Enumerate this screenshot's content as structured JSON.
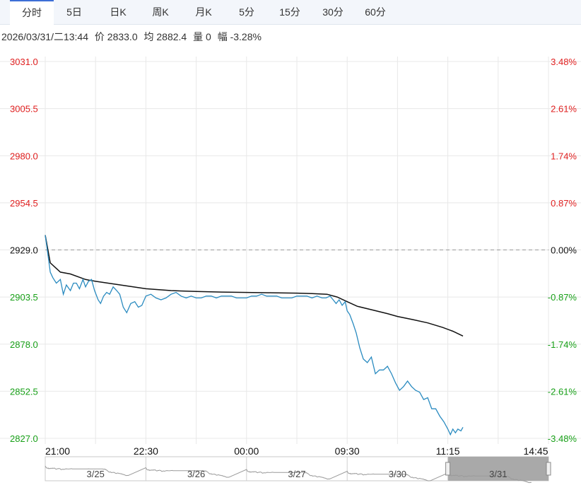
{
  "tabs": [
    "分时",
    "5日",
    "日K",
    "周K",
    "月K",
    "5分",
    "15分",
    "30分",
    "60分"
  ],
  "active_tab": 0,
  "info": {
    "datetime": "2026/03/31/二13:44",
    "price": "价 2833.0",
    "avg": "均 2882.4",
    "volume": "量 0",
    "change": "幅 -3.28%"
  },
  "colors": {
    "price_line": "#2a8bc0",
    "avg_line": "#111111",
    "up": "#e02020",
    "down": "#18a018",
    "flat": "#111111",
    "grid": "#e8e8e8",
    "accent": "#3d6fd6"
  },
  "chart_data": {
    "type": "line",
    "prev_close": 2929.0,
    "ylim": [
      2827.0,
      3031.0
    ],
    "y_ticks": [
      "3031.0",
      "3005.5",
      "2980.0",
      "2954.5",
      "2929.0",
      "2903.5",
      "2878.0",
      "2852.5",
      "2827.0"
    ],
    "pct_ticks": [
      "3.48%",
      "2.61%",
      "1.74%",
      "0.87%",
      "0.00%",
      "-0.87%",
      "-1.74%",
      "-2.61%",
      "-3.48%"
    ],
    "x_ticks": [
      "21:00",
      "22:30",
      "00:00",
      "09:30",
      "11:15",
      "14:45"
    ],
    "x_domain": [
      0,
      10
    ],
    "x_tick_positions": [
      0,
      2,
      4,
      6,
      8,
      10
    ],
    "series": [
      {
        "x": [
          0,
          0.05,
          0.1,
          0.15,
          0.22,
          0.3,
          0.36,
          0.42,
          0.5,
          0.56,
          0.62,
          0.68,
          0.75,
          0.8,
          0.86,
          0.92,
          0.98,
          1.05,
          1.1,
          1.16,
          1.22,
          1.28,
          1.35,
          1.42,
          1.48,
          1.55,
          1.62,
          1.7,
          1.78,
          1.85,
          1.92,
          2.0,
          2.1,
          2.2,
          2.3,
          2.4,
          2.5,
          2.6,
          2.7,
          2.8,
          2.9,
          3.0,
          3.1,
          3.2,
          3.3,
          3.4,
          3.5,
          3.6,
          3.7,
          3.8,
          3.9,
          4.0,
          4.1,
          4.2,
          4.3,
          4.4,
          4.5,
          4.6,
          4.7,
          4.8,
          4.9,
          5.0,
          5.1,
          5.2,
          5.3,
          5.4,
          5.5,
          5.58,
          5.66,
          5.72,
          5.78,
          5.84,
          5.9,
          5.96,
          6.0,
          6.05,
          6.12,
          6.18,
          6.25,
          6.32,
          6.4,
          6.48,
          6.56,
          6.64,
          6.72,
          6.8,
          6.88,
          6.96,
          7.04,
          7.12,
          7.2,
          7.28,
          7.36,
          7.44,
          7.52,
          7.6,
          7.68,
          7.76,
          7.84,
          7.92,
          8.0,
          8.05,
          8.1,
          8.15,
          8.2,
          8.26,
          8.3
        ],
        "values": [
          2937,
          2927,
          2917,
          2914,
          2911,
          2913,
          2905,
          2910,
          2907,
          2911,
          2911,
          2908,
          2913,
          2909,
          2912,
          2913,
          2907,
          2902,
          2900,
          2904,
          2906,
          2905,
          2909,
          2907,
          2905,
          2898,
          2895,
          2900,
          2901,
          2898,
          2899,
          2904,
          2905,
          2903,
          2902,
          2903,
          2905,
          2906,
          2904,
          2903,
          2904,
          2903,
          2903,
          2904,
          2904,
          2903,
          2904,
          2904,
          2904,
          2903,
          2903,
          2903,
          2904,
          2904,
          2905,
          2904,
          2904,
          2904,
          2903,
          2903,
          2903,
          2904,
          2904,
          2904,
          2903,
          2904,
          2903,
          2903,
          2904,
          2902,
          2900,
          2902,
          2899,
          2901,
          2896,
          2894,
          2889,
          2884,
          2876,
          2870,
          2868,
          2871,
          2862,
          2864,
          2864,
          2866,
          2862,
          2857,
          2853,
          2855,
          2858,
          2855,
          2853,
          2852,
          2848,
          2849,
          2843,
          2843,
          2839,
          2836,
          2832,
          2829,
          2832,
          2830,
          2832,
          2831,
          2833
        ]
      },
      {
        "x": [
          0,
          0.1,
          0.3,
          0.5,
          0.8,
          1.0,
          1.5,
          2.0,
          2.5,
          3.0,
          3.5,
          4.0,
          4.5,
          5.0,
          5.3,
          5.6,
          5.8,
          6.0,
          6.2,
          6.5,
          6.8,
          7.0,
          7.3,
          7.6,
          7.9,
          8.1,
          8.3
        ],
        "values": [
          2937,
          2922,
          2917,
          2916,
          2913,
          2912,
          2910,
          2908,
          2907,
          2906.5,
          2906.2,
          2906,
          2905.8,
          2905.6,
          2905.4,
          2905,
          2903.5,
          2901,
          2898.5,
          2896.5,
          2894.5,
          2893,
          2891.3,
          2889.5,
          2887,
          2885,
          2882.4
        ]
      }
    ]
  },
  "navigator": {
    "labels": [
      "3/25",
      "3/26",
      "3/27",
      "3/30",
      "3/31"
    ],
    "selected_index": 4
  }
}
